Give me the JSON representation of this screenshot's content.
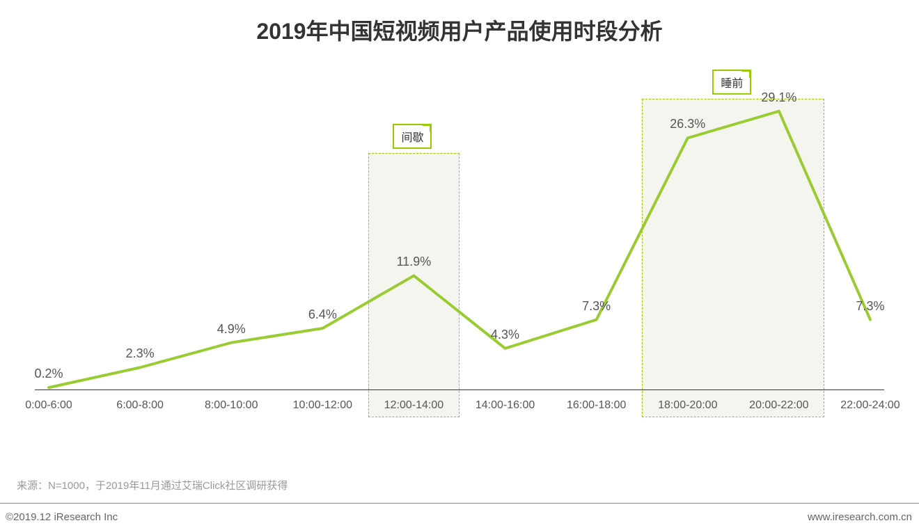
{
  "title": "2019年中国短视频用户产品使用时段分析",
  "chart": {
    "type": "line",
    "categories": [
      "0:00-6:00",
      "6:00-8:00",
      "8:00-10:00",
      "10:00-12:00",
      "12:00-14:00",
      "14:00-16:00",
      "16:00-18:00",
      "18:00-20:00",
      "20:00-22:00",
      "22:00-24:00"
    ],
    "values": [
      0.2,
      2.3,
      4.9,
      6.4,
      11.9,
      4.3,
      7.3,
      26.3,
      29.1,
      7.3
    ],
    "value_labels": [
      "0.2%",
      "2.3%",
      "4.9%",
      "6.4%",
      "11.9%",
      "4.3%",
      "7.3%",
      "26.3%",
      "29.1%",
      "7.3%"
    ],
    "ymin": 0,
    "ymax": 32,
    "line_color": "#99cc33",
    "line_width": 4,
    "background_color": "#ffffff",
    "axis_color": "#333333",
    "label_fontsize": 18,
    "label_color": "#555555",
    "tick_fontsize": 16,
    "highlights": [
      {
        "from_index": 4,
        "to_index": 4,
        "label": "间歇",
        "fill": "#f5f5f0",
        "border": "#99cc00"
      },
      {
        "from_index": 7,
        "to_index": 8,
        "label": "睡前",
        "fill": "#f5f5f0",
        "border": "#99cc00"
      }
    ]
  },
  "source_note": "来源：N=1000，于2019年11月通过艾瑞Click社区调研获得",
  "copyright": "©2019.12 iResearch Inc",
  "website": "www.iresearch.com.cn"
}
